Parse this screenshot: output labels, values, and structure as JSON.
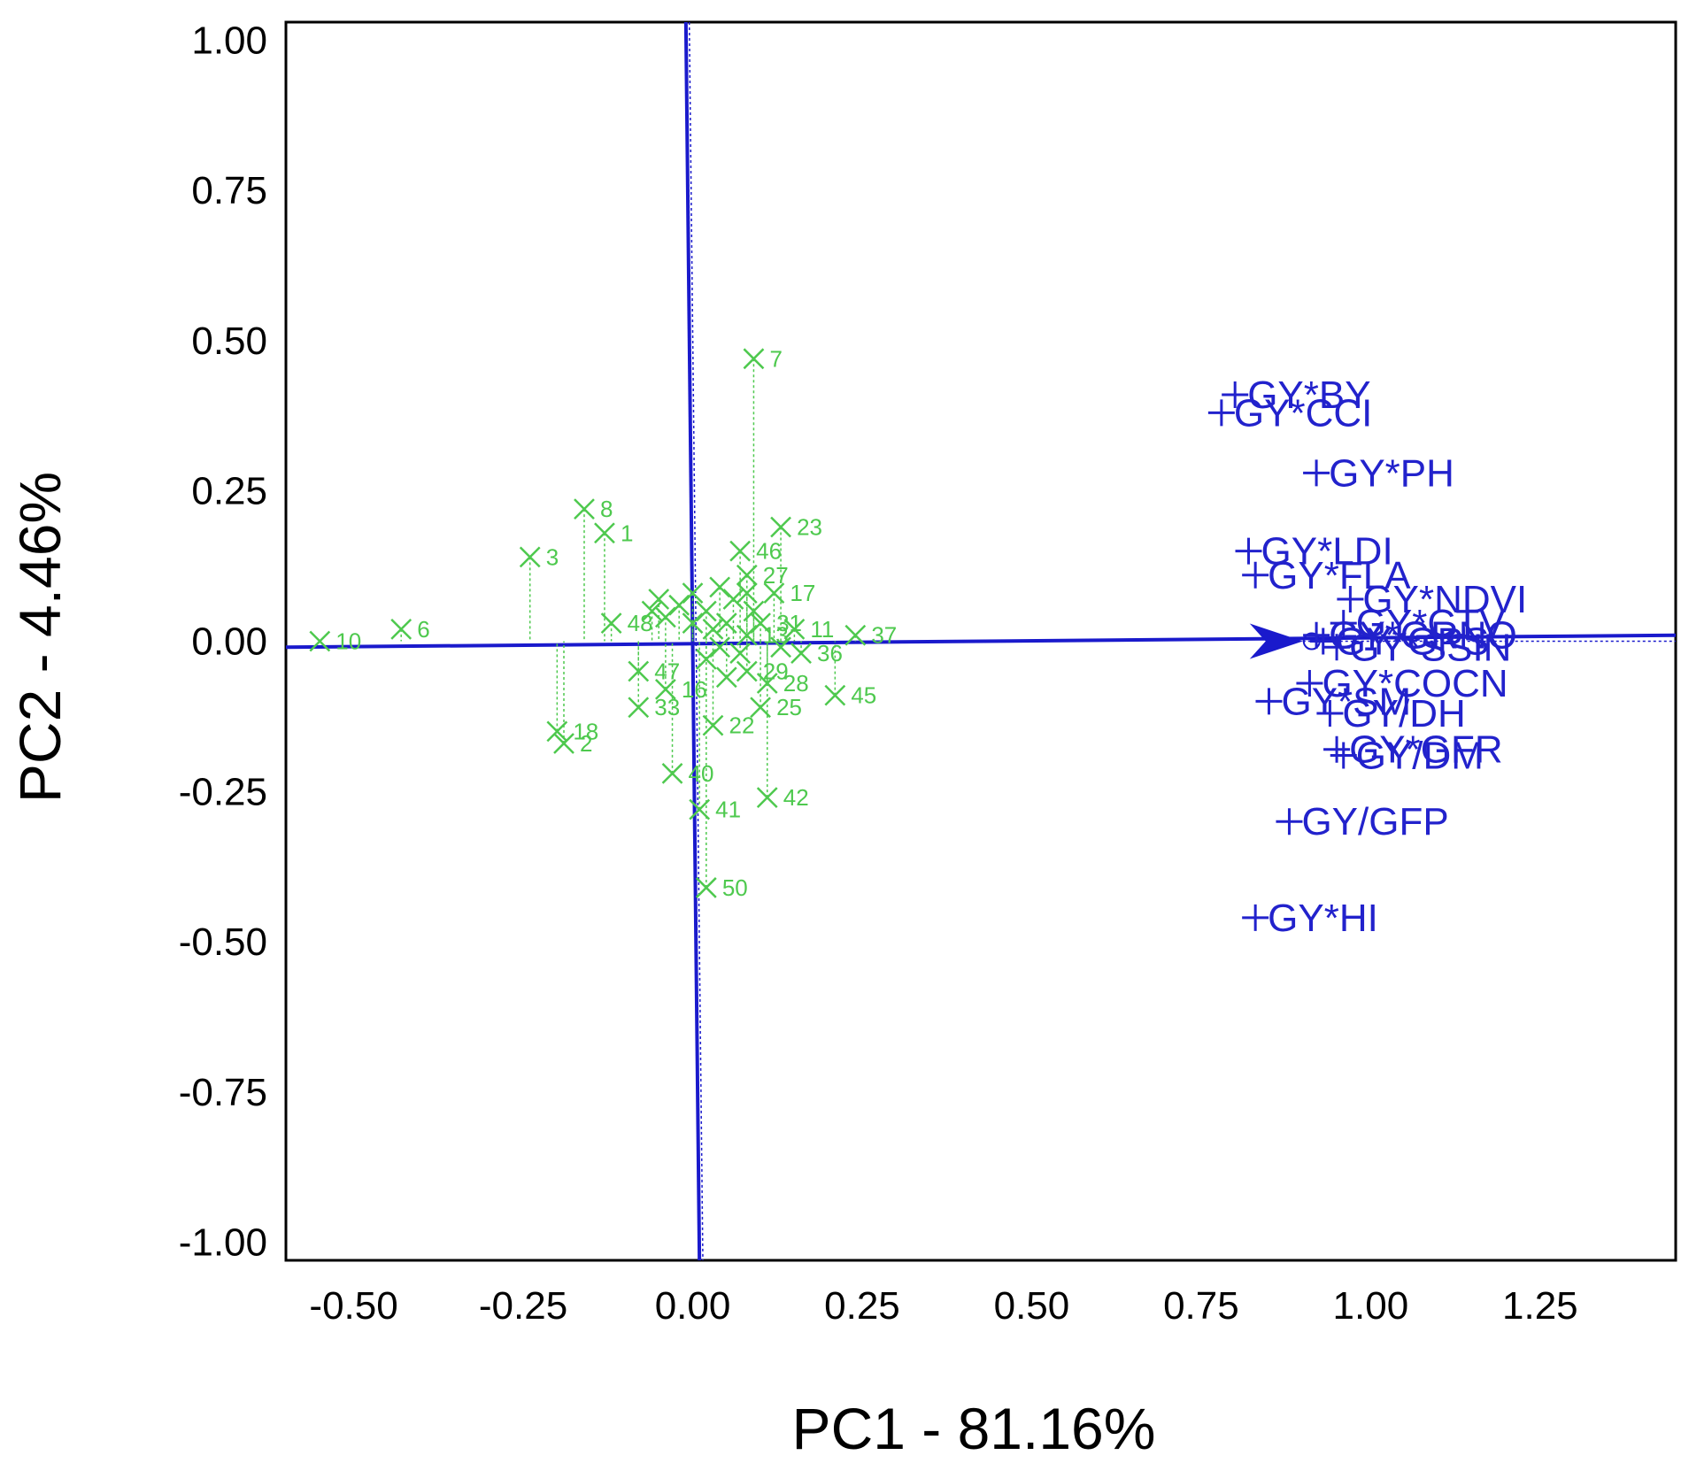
{
  "chart_data": {
    "type": "scatter",
    "subtype": "GT biplot",
    "xlabel": "PC1 - 81.16%",
    "ylabel": "PC2 - 4.46%",
    "xlim": [
      -0.6,
      1.45
    ],
    "ylim": [
      -1.03,
      1.03
    ],
    "xticks": [
      -0.5,
      -0.25,
      0.0,
      0.25,
      0.5,
      0.75,
      1.0,
      1.25
    ],
    "yticks": [
      1.0,
      0.75,
      0.5,
      0.25,
      0.0,
      -0.25,
      -0.5,
      -0.75,
      -1.0
    ],
    "xtick_labels": [
      "-0.50",
      "-0.25",
      "0.00",
      "0.25",
      "0.50",
      "0.75",
      "1.00",
      "1.25"
    ],
    "ytick_labels": [
      "1.00",
      "0.75",
      "0.50",
      "0.25",
      "0.00",
      "-0.25",
      "-0.50",
      "-0.75",
      "-1.00"
    ],
    "colors": {
      "genotype": "#4ec94e",
      "trait": "#2222cc",
      "axis": "#1a1acc",
      "frame": "#000000"
    },
    "genotypes": [
      {
        "id": "1",
        "x": -0.13,
        "y": 0.18
      },
      {
        "id": "2",
        "x": -0.19,
        "y": -0.17
      },
      {
        "id": "3",
        "x": -0.24,
        "y": 0.14
      },
      {
        "id": "6",
        "x": -0.43,
        "y": 0.02
      },
      {
        "id": "7",
        "x": 0.09,
        "y": 0.47
      },
      {
        "id": "8",
        "x": -0.16,
        "y": 0.22
      },
      {
        "id": "10",
        "x": -0.55,
        "y": 0.0
      },
      {
        "id": "11",
        "x": 0.15,
        "y": 0.02
      },
      {
        "id": "13",
        "x": 0.08,
        "y": 0.01
      },
      {
        "id": "16",
        "x": -0.04,
        "y": -0.08
      },
      {
        "id": "17",
        "x": 0.12,
        "y": 0.08
      },
      {
        "id": "18",
        "x": -0.2,
        "y": -0.15
      },
      {
        "id": "22",
        "x": 0.03,
        "y": -0.14
      },
      {
        "id": "23",
        "x": 0.13,
        "y": 0.19
      },
      {
        "id": "25",
        "x": 0.1,
        "y": -0.11
      },
      {
        "id": "27",
        "x": 0.08,
        "y": 0.11
      },
      {
        "id": "28",
        "x": 0.11,
        "y": -0.07
      },
      {
        "id": "29",
        "x": 0.08,
        "y": -0.05
      },
      {
        "id": "31",
        "x": 0.1,
        "y": 0.03
      },
      {
        "id": "33",
        "x": -0.08,
        "y": -0.11
      },
      {
        "id": "36",
        "x": 0.16,
        "y": -0.02
      },
      {
        "id": "37",
        "x": 0.24,
        "y": 0.01
      },
      {
        "id": "40",
        "x": -0.03,
        "y": -0.22
      },
      {
        "id": "41",
        "x": 0.01,
        "y": -0.28
      },
      {
        "id": "42",
        "x": 0.11,
        "y": -0.26
      },
      {
        "id": "45",
        "x": 0.21,
        "y": -0.09
      },
      {
        "id": "46",
        "x": 0.07,
        "y": 0.15
      },
      {
        "id": "47",
        "x": -0.08,
        "y": -0.05
      },
      {
        "id": "48",
        "x": -0.12,
        "y": 0.03
      },
      {
        "id": "50",
        "x": 0.02,
        "y": -0.41
      }
    ],
    "genotype_cluster": [
      {
        "x": -0.05,
        "y": 0.07
      },
      {
        "x": -0.02,
        "y": 0.06
      },
      {
        "x": 0.0,
        "y": 0.08
      },
      {
        "x": 0.02,
        "y": 0.05
      },
      {
        "x": 0.04,
        "y": 0.09
      },
      {
        "x": 0.06,
        "y": 0.07
      },
      {
        "x": 0.05,
        "y": 0.03
      },
      {
        "x": 0.03,
        "y": 0.02
      },
      {
        "x": 0.07,
        "y": -0.02
      },
      {
        "x": 0.05,
        "y": -0.06
      },
      {
        "x": 0.09,
        "y": 0.05
      },
      {
        "x": 0.08,
        "y": 0.08
      },
      {
        "x": -0.04,
        "y": 0.04
      },
      {
        "x": 0.02,
        "y": -0.03
      },
      {
        "x": 0.13,
        "y": -0.01
      },
      {
        "x": 0.04,
        "y": -0.01
      },
      {
        "x": -0.06,
        "y": 0.05
      },
      {
        "x": 0.0,
        "y": 0.03
      }
    ],
    "traits": [
      {
        "name": "GY*BY",
        "x": 0.8,
        "y": 0.41
      },
      {
        "name": "GY*CCI",
        "x": 0.78,
        "y": 0.38
      },
      {
        "name": "GY*PH",
        "x": 0.92,
        "y": 0.28
      },
      {
        "name": "GY*LDI",
        "x": 0.82,
        "y": 0.15
      },
      {
        "name": "GY*FLA",
        "x": 0.83,
        "y": 0.11
      },
      {
        "name": "GY*NDVI",
        "x": 0.97,
        "y": 0.07
      },
      {
        "name": "GY*CTV",
        "x": 0.96,
        "y": 0.03
      },
      {
        "name": "GY*GRNO",
        "x": 0.92,
        "y": 0.01
      },
      {
        "name": "GY*GPS",
        "x": 0.93,
        "y": 0.0
      },
      {
        "name": "GY*SSIN",
        "x": 0.95,
        "y": -0.01
      },
      {
        "name": "GY*COCN",
        "x": 0.91,
        "y": -0.07
      },
      {
        "name": "GY*SM",
        "x": 0.85,
        "y": -0.1
      },
      {
        "name": "GY/DH",
        "x": 0.94,
        "y": -0.12
      },
      {
        "name": "GY*GFR",
        "x": 0.95,
        "y": -0.18
      },
      {
        "name": "GY/DM",
        "x": 0.96,
        "y": -0.19
      },
      {
        "name": "GY/GFP",
        "x": 0.88,
        "y": -0.3
      },
      {
        "name": "GY*HI",
        "x": 0.83,
        "y": -0.46
      }
    ],
    "arrow": {
      "from_x": -0.6,
      "from_y": 0.0,
      "to_x": 0.9,
      "to_y": 0.0
    },
    "axis_line_end_x": 1.45
  }
}
